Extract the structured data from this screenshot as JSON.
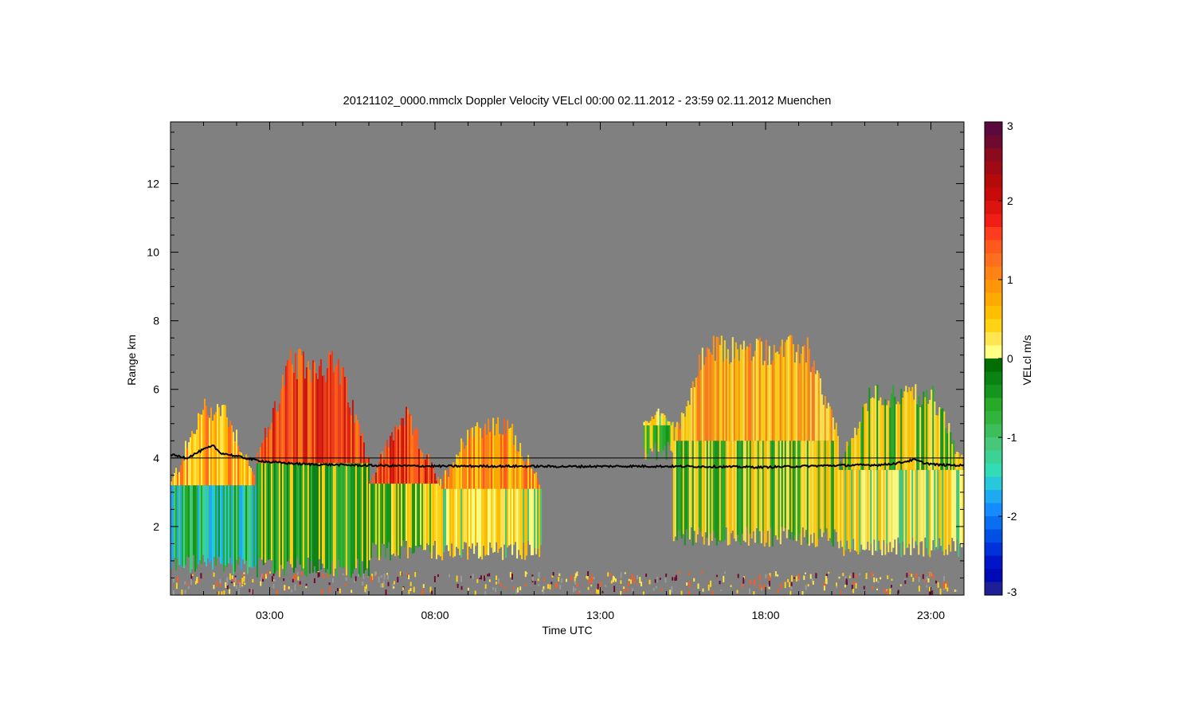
{
  "chart_data": {
    "type": "heatmap",
    "title": "20121102_0000.mmclx Doppler Velocity VELcl   00:00 02.11.2012 - 23:59 02.11.2012 Muenchen",
    "xlabel": "Time UTC",
    "ylabel": "Range km",
    "colorbar_label": "VELcl m/s",
    "x_range_hours": [
      0,
      24
    ],
    "y_range_km": [
      0.0,
      13.8
    ],
    "x_ticks": [
      {
        "value": 3,
        "label": "03:00"
      },
      {
        "value": 8,
        "label": "08:00"
      },
      {
        "value": 13,
        "label": "13:00"
      },
      {
        "value": 18,
        "label": "18:00"
      },
      {
        "value": 23,
        "label": "23:00"
      }
    ],
    "y_ticks": [
      {
        "value": 2,
        "label": "2"
      },
      {
        "value": 4,
        "label": "4"
      },
      {
        "value": 6,
        "label": "6"
      },
      {
        "value": 8,
        "label": "8"
      },
      {
        "value": 10,
        "label": "10"
      },
      {
        "value": 12,
        "label": "12"
      }
    ],
    "colorbar_range": [
      -3,
      3
    ],
    "colorbar_ticks": [
      {
        "value": 3,
        "label": "3"
      },
      {
        "value": 2,
        "label": "2"
      },
      {
        "value": 1,
        "label": "1"
      },
      {
        "value": 0,
        "label": "0"
      },
      {
        "value": -1,
        "label": "-1"
      },
      {
        "value": -2,
        "label": "-2"
      },
      {
        "value": -3,
        "label": "-3"
      }
    ],
    "colorbar_colors": [
      "#5a0a3c",
      "#6e0a30",
      "#8c0a1e",
      "#a00a14",
      "#b40a0a",
      "#c80a0a",
      "#dc1410",
      "#f01e14",
      "#ff3c1e",
      "#ff5a1e",
      "#ff6e1e",
      "#ff8214",
      "#ff960a",
      "#ffaa00",
      "#ffbe00",
      "#ffd214",
      "#ffe650",
      "#ffff82",
      "#006e00",
      "#0a8214",
      "#14961e",
      "#28aa28",
      "#32b43c",
      "#3cbe5a",
      "#46c878",
      "#3cd296",
      "#32dcb4",
      "#28c8dc",
      "#1eaaf0",
      "#148cff",
      "#0a6ef0",
      "#0050e6",
      "#0032dc",
      "#0014c8",
      "#000ab4",
      "#1e1e96"
    ],
    "reference_line_km": 4.0,
    "background_color": "#808080",
    "echo_regions": [
      {
        "t0": 0.0,
        "t1": 2.6,
        "bottom": 0.6,
        "top": 5.8,
        "upper": "orange/yellow",
        "lower": "green/cyan"
      },
      {
        "t0": 2.6,
        "t1": 6.0,
        "bottom": 0.5,
        "top": 7.2,
        "upper": "red/orange",
        "lower": "green"
      },
      {
        "t0": 6.0,
        "t1": 8.1,
        "bottom": 1.0,
        "top": 5.5,
        "upper": "red/orange",
        "lower": "yellow/green"
      },
      {
        "t0": 8.1,
        "t1": 11.2,
        "bottom": 1.0,
        "top": 5.2,
        "upper": "orange",
        "lower": "yellow"
      },
      {
        "t0": 14.3,
        "t1": 15.2,
        "bottom": 3.9,
        "top": 6.0,
        "upper": "yellow",
        "lower": "green"
      },
      {
        "t0": 15.2,
        "t1": 20.2,
        "bottom": 1.4,
        "top": 7.6,
        "upper": "yellow/orange",
        "lower": "yellow/green"
      },
      {
        "t0": 20.2,
        "t1": 24.0,
        "bottom": 1.1,
        "top": 6.2,
        "upper": "yellow/green",
        "lower": "yellow"
      }
    ],
    "overlay_line": {
      "name": "",
      "x_hours": [
        0,
        0.5,
        1.0,
        1.3,
        1.5,
        2.0,
        2.5,
        3.0,
        4.0,
        6.0,
        8.0,
        10.0,
        12.0,
        14.0,
        16.0,
        18.0,
        20.0,
        21.5,
        22.0,
        22.5,
        22.8,
        23.2,
        24.0
      ],
      "y_km": [
        4.1,
        4.0,
        4.25,
        4.35,
        4.15,
        4.05,
        3.95,
        3.88,
        3.82,
        3.78,
        3.76,
        3.76,
        3.75,
        3.76,
        3.75,
        3.73,
        3.78,
        3.8,
        3.85,
        3.95,
        3.85,
        3.8,
        3.78
      ]
    }
  }
}
